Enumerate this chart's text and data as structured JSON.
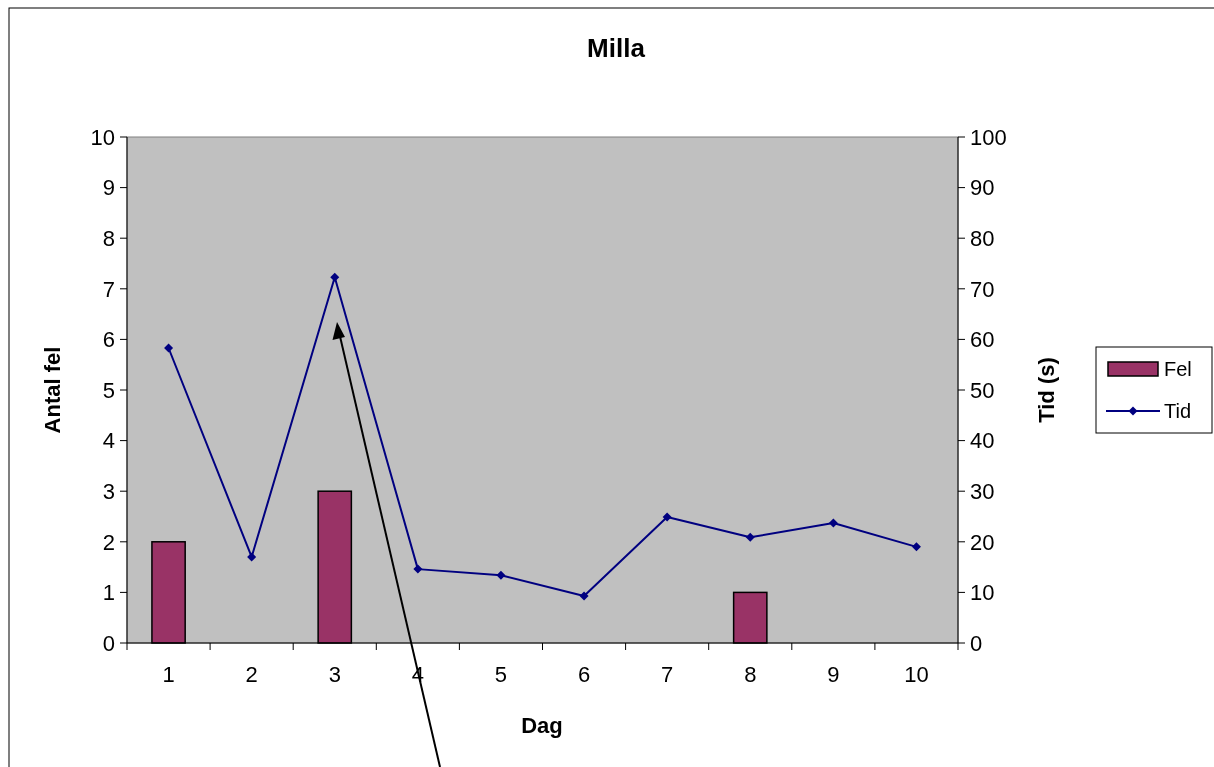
{
  "chart_data": {
    "type": "bar",
    "title": "Milla",
    "xlabel": "Dag",
    "ylabel": "Antal fel",
    "y2label": "Tid (s)",
    "categories": [
      "1",
      "2",
      "3",
      "4",
      "5",
      "6",
      "7",
      "8",
      "9",
      "10"
    ],
    "series": [
      {
        "name": "Fel",
        "color": "#993366",
        "values": [
          2,
          0,
          3,
          0,
          0,
          0,
          0,
          1,
          0,
          0
        ]
      },
      {
        "name": "Tid",
        "type": "line",
        "axis": "y2",
        "color": "#000080",
        "values": [
          58.3,
          17.0,
          72.3,
          14.6,
          13.4,
          9.3,
          24.9,
          20.9,
          23.7,
          19.0
        ]
      }
    ],
    "ylim": [
      0,
      10
    ],
    "yticks": [
      0,
      1,
      2,
      3,
      4,
      5,
      6,
      7,
      8,
      9,
      10
    ],
    "y2lim": [
      0,
      100
    ],
    "y2ticks": [
      0,
      10,
      20,
      30,
      40,
      50,
      60,
      70,
      80,
      90,
      100
    ],
    "legend": "right",
    "marker": "diamond",
    "grid": false
  }
}
